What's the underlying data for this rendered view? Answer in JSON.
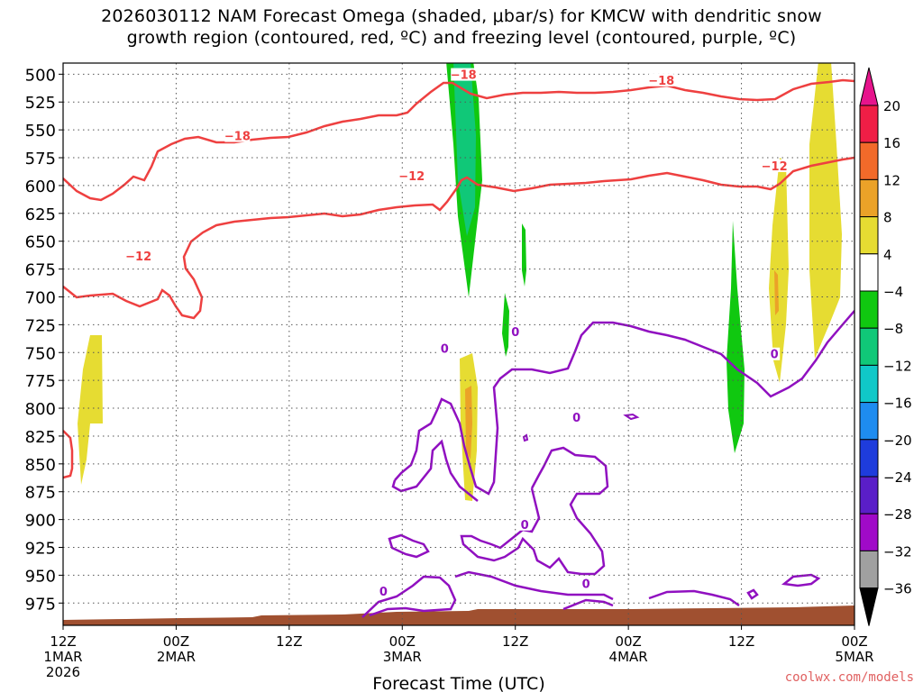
{
  "title_lines": [
    "2026030112 NAM Forecast Omega (shaded, μbar/s) for KMCW with dendritic snow",
    "growth region (contoured, red, ºC) and freezing level (contoured, purple, ºC)"
  ],
  "attribution": "coolwx.com/models",
  "colors": {
    "dgz_contour": "#ee4040",
    "freezing_contour": "#9010c0",
    "terrain": "#a05030",
    "grid": "#555555"
  },
  "chart_data": {
    "type": "heatmap",
    "xlabel": "Forecast Time (UTC)",
    "ylabel": "",
    "xlim_hours": [
      0,
      84
    ],
    "ylim_hpa": [
      490,
      995
    ],
    "x_ticks": [
      {
        "hour": 0,
        "lines": [
          "12Z",
          "1MAR",
          "2026"
        ]
      },
      {
        "hour": 12,
        "lines": [
          "00Z",
          "2MAR"
        ]
      },
      {
        "hour": 24,
        "lines": [
          "12Z"
        ]
      },
      {
        "hour": 36,
        "lines": [
          "00Z",
          "3MAR"
        ]
      },
      {
        "hour": 48,
        "lines": [
          "12Z"
        ]
      },
      {
        "hour": 60,
        "lines": [
          "00Z",
          "4MAR"
        ]
      },
      {
        "hour": 72,
        "lines": [
          "12Z"
        ]
      },
      {
        "hour": 84,
        "lines": [
          "00Z",
          "5MAR"
        ]
      }
    ],
    "y_ticks": [
      500,
      525,
      550,
      575,
      600,
      625,
      650,
      675,
      700,
      725,
      750,
      775,
      800,
      825,
      850,
      875,
      900,
      925,
      950,
      975
    ],
    "grid": true,
    "colorbar": {
      "labels": [
        "20",
        "16",
        "12",
        "8",
        "4",
        "−4",
        "−8",
        "−12",
        "−16",
        "−20",
        "−24",
        "−28",
        "−32",
        "−36"
      ],
      "bins": [
        {
          "from": 16,
          "to": 20,
          "color": "#f01e46"
        },
        {
          "from": 12,
          "to": 16,
          "color": "#f26a2a"
        },
        {
          "from": 8,
          "to": 12,
          "color": "#eba228"
        },
        {
          "from": 4,
          "to": 8,
          "color": "#e6dc32"
        },
        {
          "from": -4,
          "to": 4,
          "color": "#ffffff"
        },
        {
          "from": -8,
          "to": -4,
          "color": "#10c810"
        },
        {
          "from": -12,
          "to": -8,
          "color": "#10c878"
        },
        {
          "from": -16,
          "to": -12,
          "color": "#10c8c8"
        },
        {
          "from": -20,
          "to": -16,
          "color": "#1e8cf0"
        },
        {
          "from": -24,
          "to": -20,
          "color": "#1e3cdc"
        },
        {
          "from": -28,
          "to": -24,
          "color": "#5a1ec8"
        },
        {
          "from": -32,
          "to": -28,
          "color": "#a00ac8"
        },
        {
          "from": -36,
          "to": -32,
          "color": "#a0a0a0"
        }
      ],
      "top_extension_color": "#e6148c",
      "bottom_extension_color": "#000000"
    },
    "contour_labels": [
      {
        "text": "−18",
        "hour": 42.5,
        "hpa": 501,
        "color": "#ee4040"
      },
      {
        "text": "−18",
        "hour": 63.5,
        "hpa": 506,
        "color": "#ee4040"
      },
      {
        "text": "−18",
        "hour": 18.5,
        "hpa": 556,
        "color": "#ee4040"
      },
      {
        "text": "−12",
        "hour": 75.5,
        "hpa": 583,
        "color": "#ee4040"
      },
      {
        "text": "−12",
        "hour": 37.0,
        "hpa": 592,
        "color": "#ee4040"
      },
      {
        "text": "−12",
        "hour": 8.0,
        "hpa": 664,
        "color": "#ee4040"
      },
      {
        "text": "0",
        "hour": 48.0,
        "hpa": 732,
        "color": "#9010c0"
      },
      {
        "text": "0",
        "hour": 40.5,
        "hpa": 747,
        "color": "#9010c0"
      },
      {
        "text": "0",
        "hour": 75.5,
        "hpa": 752,
        "color": "#9010c0"
      },
      {
        "text": "0",
        "hour": 54.5,
        "hpa": 809,
        "color": "#9010c0"
      },
      {
        "text": "0",
        "hour": 49.0,
        "hpa": 905,
        "color": "#9010c0"
      },
      {
        "text": "0",
        "hour": 55.5,
        "hpa": 958,
        "color": "#9010c0"
      },
      {
        "text": "0",
        "hour": 34.0,
        "hpa": 965,
        "color": "#9010c0"
      }
    ]
  }
}
